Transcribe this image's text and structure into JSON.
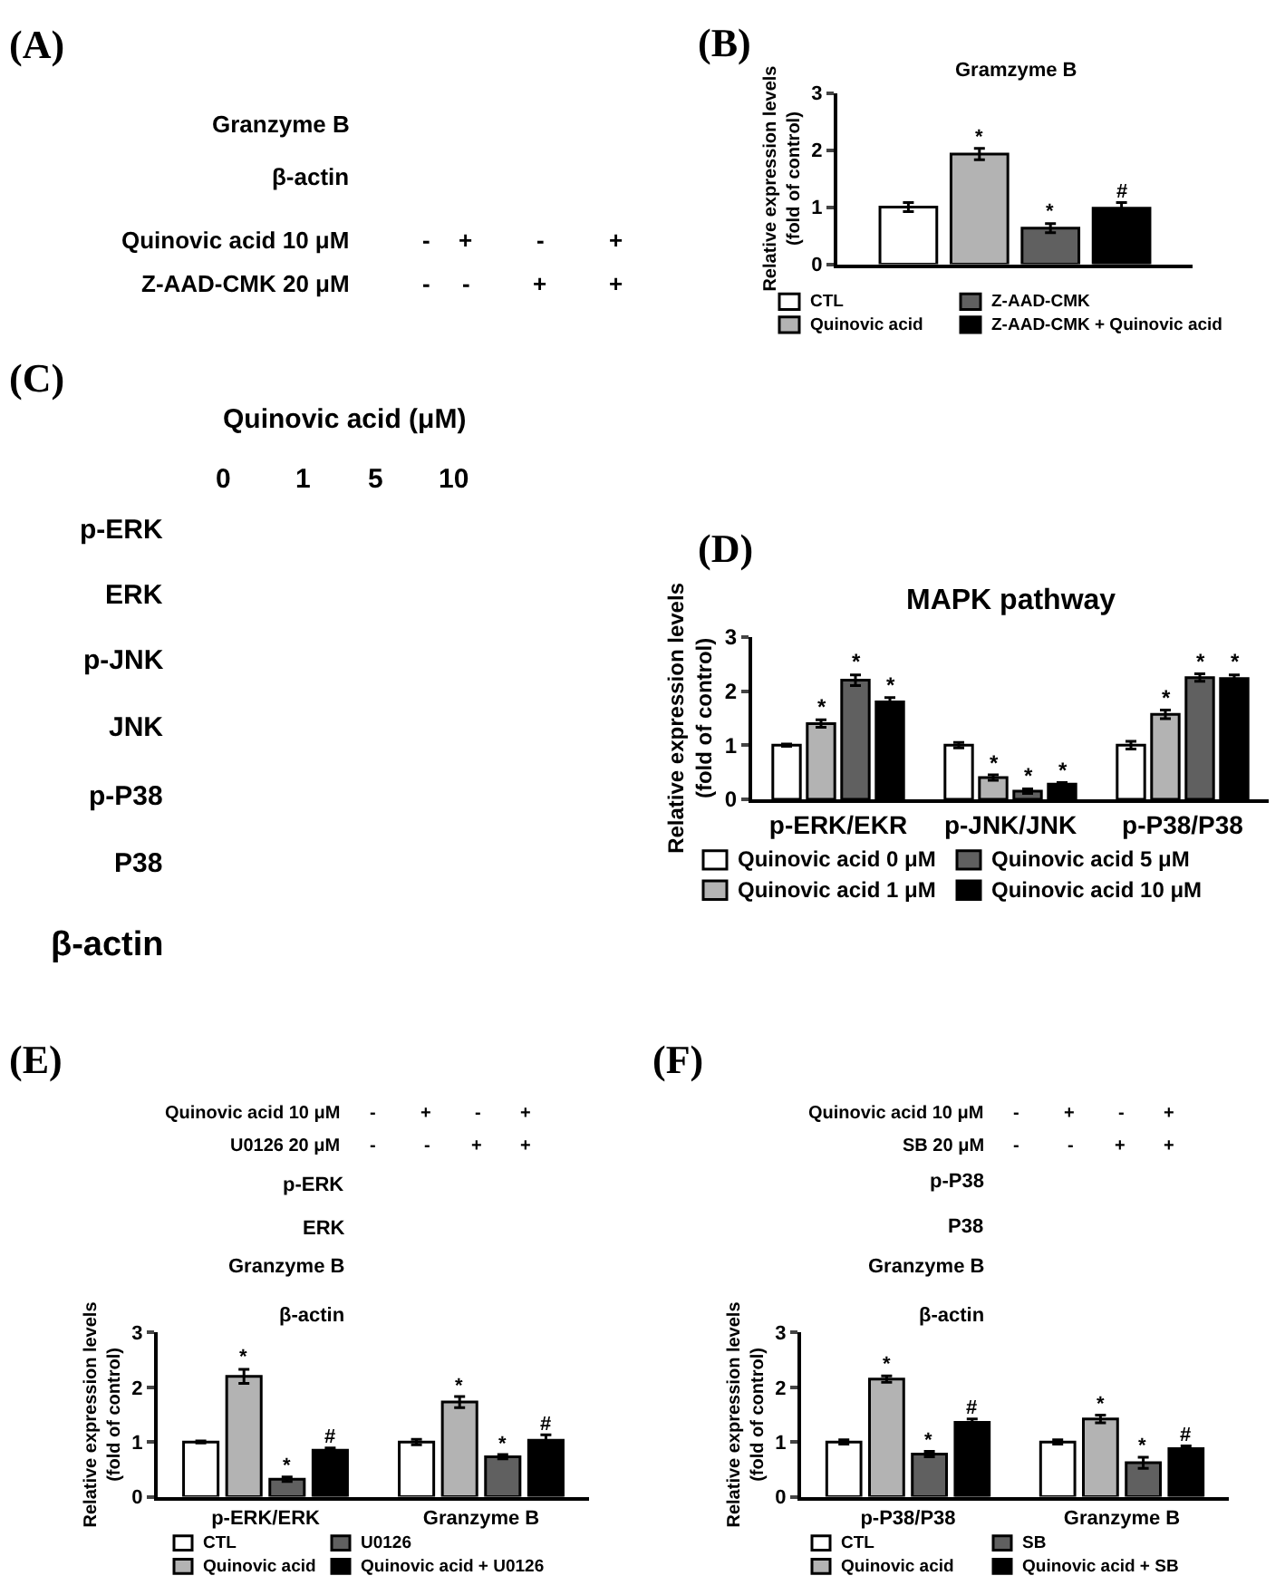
{
  "chart_data": [
    {
      "type": "other",
      "annotations": [
        "(A)",
        "Granzyme B",
        "β-actin",
        "Quinovic acid 10 μM",
        "Z-AAD-CMK 20 μM",
        "-",
        "+",
        "-",
        "+",
        "-",
        "-",
        "+",
        "+"
      ]
    },
    {
      "type": "bar",
      "title": "Gramzyme B",
      "ylabel": "Relative expression levels\n(fold of control)",
      "categories": [
        null
      ],
      "ylim": [
        0,
        3
      ],
      "yticks": [
        0,
        1,
        2,
        3
      ],
      "tick_labels": "y",
      "legend": "bottom",
      "annotations": [
        "(B)"
      ],
      "series": [
        {
          "name": "CTL",
          "color": "#ffffff",
          "values": [
            1.0
          ],
          "errors": [
            0.08
          ],
          "value_labels": [
            null
          ]
        },
        {
          "name": "Quinovic acid",
          "color": "#b3b3b3",
          "values": [
            1.93
          ],
          "errors": [
            0.1
          ],
          "value_labels": [
            "*"
          ]
        },
        {
          "name": "Z-AAD-CMK",
          "color": "#606060",
          "values": [
            0.63
          ],
          "errors": [
            0.08
          ],
          "value_labels": [
            "*"
          ]
        },
        {
          "name": "Z-AAD-CMK + Quinovic acid",
          "color": "#000000",
          "values": [
            0.98
          ],
          "errors": [
            0.1
          ],
          "value_labels": [
            "#"
          ]
        }
      ]
    },
    {
      "type": "other",
      "annotations": [
        "(C)",
        "Quinovic acid (μM)",
        "0",
        "1",
        "5",
        "10",
        "p-ERK",
        "ERK",
        "p-JNK",
        "JNK",
        "p-P38",
        "P38",
        "β-actin"
      ]
    },
    {
      "type": "bar",
      "title": "MAPK pathway",
      "ylabel": "Relative expression levels\n(fold of control)",
      "categories": [
        "p-ERK/EKR",
        "p-JNK/JNK",
        "p-P38/P38"
      ],
      "ylim": [
        0,
        3
      ],
      "yticks": [
        0,
        1,
        2,
        3
      ],
      "legend": "bottom",
      "annotations": [
        "(D)"
      ],
      "series": [
        {
          "name": "Quinovic acid 0 μM",
          "color": "#ffffff",
          "values": [
            1.0,
            1.0,
            1.0
          ],
          "errors": [
            0.02,
            0.05,
            0.07
          ],
          "value_labels": [
            null,
            null,
            null
          ]
        },
        {
          "name": "Quinovic acid 1 μM",
          "color": "#b3b3b3",
          "values": [
            1.4,
            0.4,
            1.57
          ],
          "errors": [
            0.07,
            0.05,
            0.08
          ],
          "value_labels": [
            "*",
            "*",
            "*"
          ]
        },
        {
          "name": "Quinovic acid 5 μM",
          "color": "#606060",
          "values": [
            2.2,
            0.15,
            2.25
          ],
          "errors": [
            0.1,
            0.04,
            0.07
          ],
          "value_labels": [
            "*",
            "*",
            "*"
          ]
        },
        {
          "name": "Quinovic acid 10 μM",
          "color": "#000000",
          "values": [
            1.8,
            0.28,
            2.23
          ],
          "errors": [
            0.08,
            0.03,
            0.07
          ],
          "value_labels": [
            "*",
            "*",
            "*"
          ]
        }
      ]
    },
    {
      "type": "bar",
      "ylabel": "Relative expression levels\n(fold of control)",
      "categories": [
        "p-ERK/ERK",
        "Granzyme B"
      ],
      "ylim": [
        0,
        3
      ],
      "yticks": [
        0,
        1,
        2,
        3
      ],
      "legend": "bottom",
      "annotations": [
        "(E)",
        "Quinovic acid 10 μM",
        "U0126 20 μM",
        "-",
        "+",
        "-",
        "+",
        "-",
        "-",
        "+",
        "+",
        "p-ERK",
        "ERK",
        "Granzyme B",
        "β-actin"
      ],
      "series": [
        {
          "name": "CTL",
          "color": "#ffffff",
          "values": [
            1.0,
            1.0
          ],
          "errors": [
            0.02,
            0.05
          ],
          "value_labels": [
            null,
            null
          ]
        },
        {
          "name": "Quinovic acid",
          "color": "#b3b3b3",
          "values": [
            2.2,
            1.73
          ],
          "errors": [
            0.13,
            0.1
          ],
          "value_labels": [
            "*",
            "*"
          ]
        },
        {
          "name": "U0126",
          "color": "#606060",
          "values": [
            0.32,
            0.73
          ],
          "errors": [
            0.04,
            0.04
          ],
          "value_labels": [
            "*",
            "*"
          ]
        },
        {
          "name": "Quinovic acid + U0126",
          "color": "#000000",
          "values": [
            0.85,
            1.03
          ],
          "errors": [
            0.04,
            0.1
          ],
          "value_labels": [
            "#",
            "#"
          ]
        }
      ]
    },
    {
      "type": "bar",
      "ylabel": "Relative expression levels\n(fold of control)",
      "categories": [
        "p-P38/P38",
        "Granzyme B"
      ],
      "ylim": [
        0,
        3
      ],
      "yticks": [
        0,
        1,
        2,
        3
      ],
      "legend": "bottom",
      "annotations": [
        "(F)",
        "Quinovic acid 10 μM",
        "SB 20 μM",
        "-",
        "+",
        "-",
        "+",
        "-",
        "-",
        "+",
        "+",
        "p-P38",
        "P38",
        "Granzyme B",
        "β-actin"
      ],
      "series": [
        {
          "name": "CTL",
          "color": "#ffffff",
          "values": [
            1.0,
            1.0
          ],
          "errors": [
            0.04,
            0.04
          ],
          "value_labels": [
            null,
            null
          ]
        },
        {
          "name": "Quinovic acid",
          "color": "#b3b3b3",
          "values": [
            2.15,
            1.42
          ],
          "errors": [
            0.06,
            0.07
          ],
          "value_labels": [
            "*",
            "*"
          ]
        },
        {
          "name": "SB",
          "color": "#606060",
          "values": [
            0.78,
            0.62
          ],
          "errors": [
            0.05,
            0.1
          ],
          "value_labels": [
            "*",
            "*"
          ]
        },
        {
          "name": "Quinovic acid + SB",
          "color": "#000000",
          "values": [
            1.36,
            0.88
          ],
          "errors": [
            0.06,
            0.05
          ],
          "value_labels": [
            "#",
            "#"
          ]
        }
      ]
    }
  ]
}
